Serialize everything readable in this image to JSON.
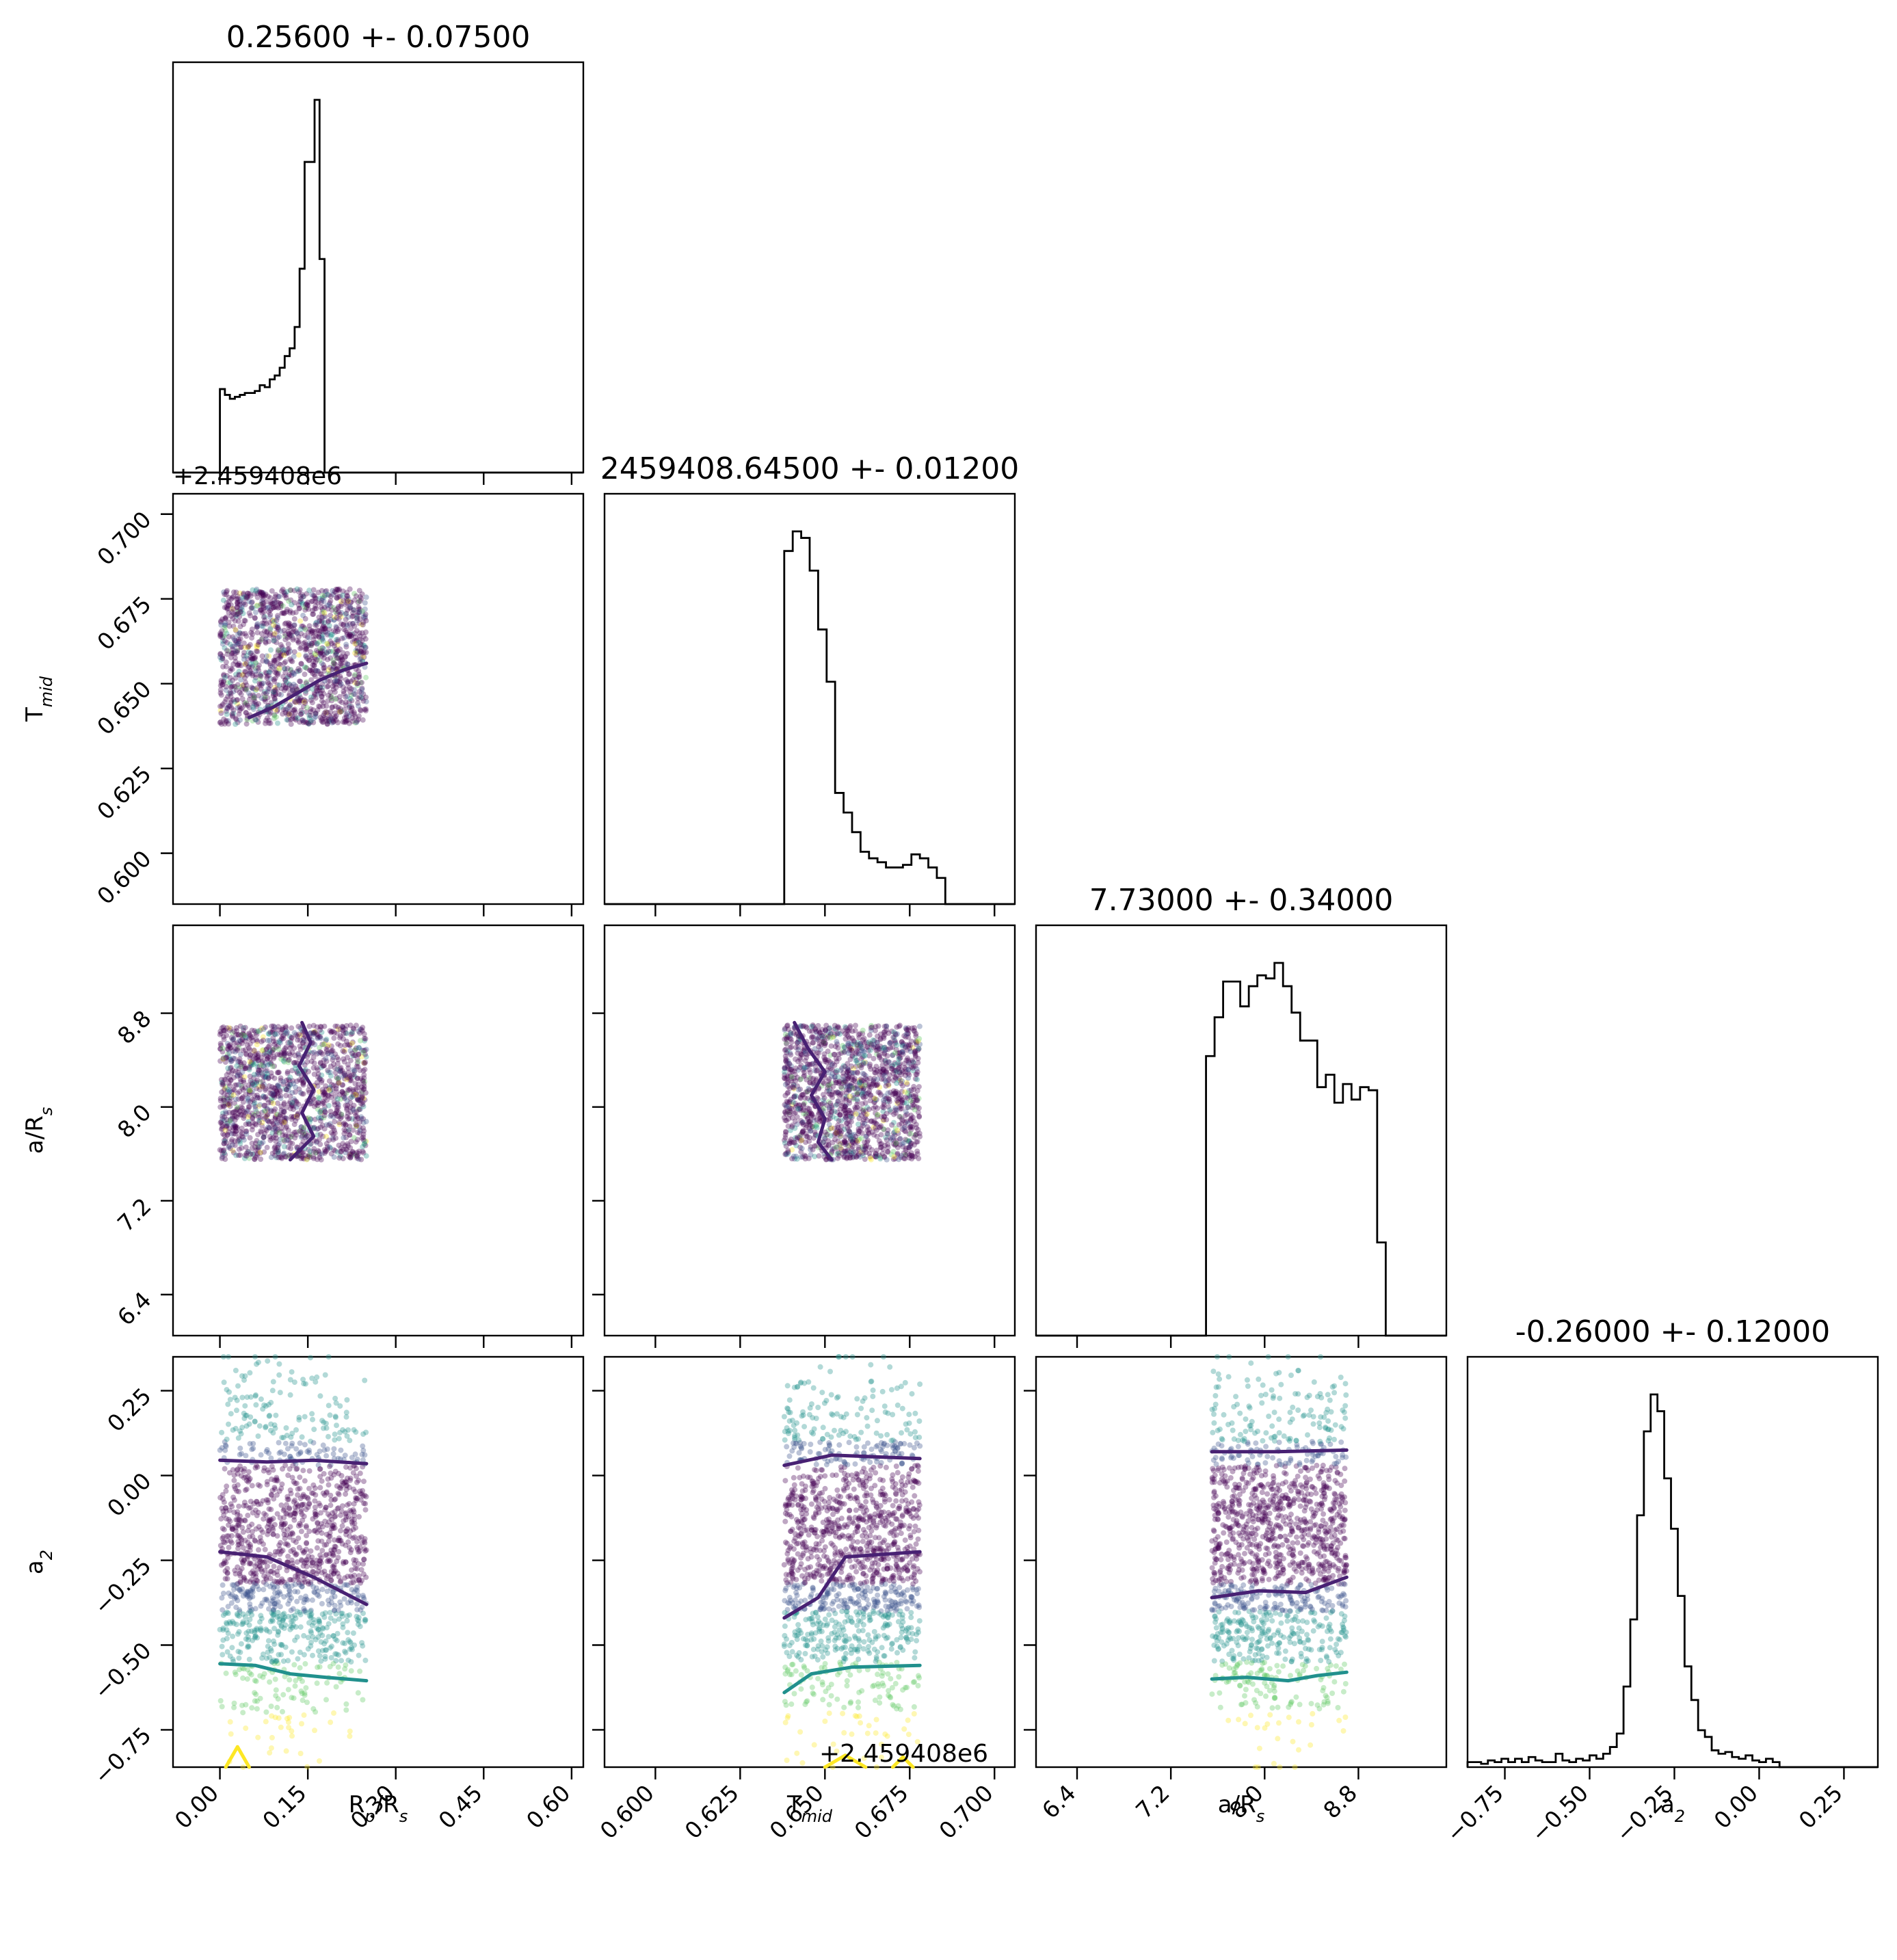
{
  "figure": {
    "kind": "corner plot"
  },
  "colors": {
    "viridis": [
      "#440154",
      "#3b528b",
      "#21918c",
      "#5ec962",
      "#fde725"
    ],
    "contour_dark": "#482173",
    "contour_mid": "#21908d",
    "contour_light": "#fde725"
  },
  "chart_data": {
    "type": "corner",
    "parameters": [
      {
        "key": "rp",
        "label": "R_p/R_s",
        "label_main": "R",
        "label_sub": "p",
        "label_rest": "/R",
        "label_sub2": "s",
        "title": "0.25600 +- 0.07500",
        "range": [
          -0.08,
          0.62
        ],
        "ticks": [
          0.0,
          0.15,
          0.3,
          0.45,
          0.6
        ],
        "tick_labels": [
          "0.00",
          "0.15",
          "0.30",
          "0.45",
          "0.60"
        ]
      },
      {
        "key": "tmid",
        "label": "T_mid",
        "label_main": "T",
        "label_sub": "mid",
        "title": "2459408.64500 +- 0.01200",
        "range": [
          0.585,
          0.706
        ],
        "offset": "+2.459408e6",
        "ticks": [
          0.6,
          0.625,
          0.65,
          0.675,
          0.7
        ],
        "tick_labels": [
          "0.600",
          "0.625",
          "0.650",
          "0.675",
          "0.700"
        ]
      },
      {
        "key": "ars",
        "label": "a/R_s",
        "label_main": "a/R",
        "label_sub": "s",
        "title": "7.73000 +- 0.34000",
        "range": [
          6.05,
          9.55
        ],
        "ticks": [
          6.4,
          7.2,
          8.0,
          8.8
        ],
        "tick_labels": [
          "6.4",
          "7.2",
          "8.0",
          "8.8"
        ]
      },
      {
        "key": "a2",
        "label": "a_2",
        "label_main": "a",
        "label_sub": "2",
        "title": "-0.26000 +- 0.12000",
        "range": [
          -0.86,
          0.35
        ],
        "ticks": [
          -0.75,
          -0.5,
          -0.25,
          0.0,
          0.25
        ],
        "tick_labels": [
          "−0.75",
          "−0.50",
          "−0.25",
          "0.00",
          "0.25"
        ]
      }
    ],
    "histograms": [
      {
        "param": "rp",
        "bin_width": 0.0085,
        "start": 0.0,
        "counts": [
          43,
          40,
          38,
          39,
          40,
          41,
          41,
          42,
          45,
          44,
          48,
          50,
          54,
          60,
          64,
          75,
          105,
          160,
          160,
          192,
          110,
          0
        ]
      },
      {
        "param": "tmid",
        "bin_width": 0.0025,
        "start": 0.638,
        "counts": [
          270,
          285,
          280,
          255,
          210,
          170,
          85,
          70,
          55,
          40,
          35,
          32,
          28,
          28,
          30,
          38,
          35,
          28,
          20,
          0
        ]
      },
      {
        "param": "ars",
        "bin_width": 0.073,
        "start": 7.5,
        "counts": [
          180,
          205,
          228,
          228,
          212,
          225,
          232,
          230,
          240,
          225,
          208,
          190,
          190,
          160,
          168,
          150,
          162,
          152,
          160,
          158,
          60,
          0
        ]
      },
      {
        "param": "a2",
        "bin_width": 0.02,
        "start": -0.86,
        "counts": [
          3,
          3,
          2,
          4,
          3,
          5,
          3,
          5,
          3,
          6,
          4,
          3,
          3,
          8,
          4,
          3,
          5,
          4,
          7,
          5,
          8,
          12,
          20,
          48,
          88,
          150,
          200,
          222,
          212,
          172,
          142,
          102,
          60,
          40,
          22,
          18,
          10,
          8,
          9,
          6,
          5,
          7,
          4,
          3,
          5,
          3
        ]
      }
    ],
    "scatter": [
      {
        "x": "rp",
        "y": "tmid",
        "x_range": [
          0.0,
          0.25
        ],
        "y_range": [
          0.638,
          0.678
        ]
      },
      {
        "x": "rp",
        "y": "ars",
        "x_range": [
          0.0,
          0.25
        ],
        "y_range": [
          7.55,
          8.7
        ]
      },
      {
        "x": "tmid",
        "y": "ars",
        "x_range": [
          0.638,
          0.678
        ],
        "y_range": [
          7.55,
          8.7
        ]
      },
      {
        "x": "rp",
        "y": "a2",
        "x_range": [
          0.0,
          0.25
        ],
        "y_range": [
          -0.86,
          0.35
        ]
      },
      {
        "x": "tmid",
        "y": "a2",
        "x_range": [
          0.638,
          0.678
        ],
        "y_range": [
          -0.86,
          0.35
        ]
      },
      {
        "x": "ars",
        "y": "a2",
        "x_range": [
          7.55,
          8.7
        ],
        "y_range": [
          -0.86,
          0.35
        ]
      }
    ],
    "contours": [
      {
        "x": "rp",
        "y": "tmid",
        "color": "dark",
        "lines": [
          [
            [
              0.05,
              0.64
            ],
            [
              0.09,
              0.643
            ],
            [
              0.13,
              0.647
            ],
            [
              0.17,
              0.651
            ],
            [
              0.21,
              0.654
            ],
            [
              0.25,
              0.656
            ]
          ]
        ]
      },
      {
        "x": "rp",
        "y": "ars",
        "color": "dark",
        "lines": [
          [
            [
              0.14,
              8.72
            ],
            [
              0.155,
              8.55
            ],
            [
              0.135,
              8.35
            ],
            [
              0.16,
              8.15
            ],
            [
              0.14,
              7.95
            ],
            [
              0.16,
              7.75
            ],
            [
              0.12,
              7.55
            ]
          ]
        ]
      },
      {
        "x": "tmid",
        "y": "ars",
        "color": "dark",
        "lines": [
          [
            [
              0.641,
              8.72
            ],
            [
              0.645,
              8.5
            ],
            [
              0.65,
              8.3
            ],
            [
              0.646,
              8.1
            ],
            [
              0.65,
              7.9
            ],
            [
              0.648,
              7.7
            ],
            [
              0.652,
              7.55
            ]
          ]
        ]
      },
      {
        "x": "rp",
        "y": "a2",
        "color": "dark",
        "lines": [
          [
            [
              0.0,
              0.045
            ],
            [
              0.08,
              0.04
            ],
            [
              0.16,
              0.045
            ],
            [
              0.25,
              0.035
            ]
          ],
          [
            [
              0.0,
              -0.225
            ],
            [
              0.08,
              -0.24
            ],
            [
              0.16,
              -0.3
            ],
            [
              0.25,
              -0.38
            ]
          ]
        ]
      },
      {
        "x": "rp",
        "y": "a2",
        "color": "mid",
        "lines": [
          [
            [
              0.0,
              -0.555
            ],
            [
              0.06,
              -0.56
            ],
            [
              0.12,
              -0.585
            ],
            [
              0.18,
              -0.595
            ],
            [
              0.25,
              -0.605
            ]
          ]
        ]
      },
      {
        "x": "rp",
        "y": "a2",
        "color": "light",
        "lines": [
          [
            [
              0.01,
              -0.86
            ],
            [
              0.03,
              -0.8
            ],
            [
              0.05,
              -0.86
            ]
          ]
        ]
      },
      {
        "x": "tmid",
        "y": "a2",
        "color": "dark",
        "lines": [
          [
            [
              0.638,
              0.03
            ],
            [
              0.652,
              0.06
            ],
            [
              0.678,
              0.05
            ]
          ],
          [
            [
              0.638,
              -0.42
            ],
            [
              0.648,
              -0.36
            ],
            [
              0.656,
              -0.24
            ],
            [
              0.678,
              -0.225
            ]
          ]
        ]
      },
      {
        "x": "tmid",
        "y": "a2",
        "color": "mid",
        "lines": [
          [
            [
              0.638,
              -0.64
            ],
            [
              0.646,
              -0.585
            ],
            [
              0.658,
              -0.565
            ],
            [
              0.678,
              -0.56
            ]
          ]
        ]
      },
      {
        "x": "tmid",
        "y": "a2",
        "color": "light",
        "lines": [
          [
            [
              0.65,
              -0.86
            ],
            [
              0.656,
              -0.825
            ],
            [
              0.662,
              -0.86
            ]
          ],
          [
            [
              0.67,
              -0.86
            ],
            [
              0.673,
              -0.83
            ],
            [
              0.676,
              -0.86
            ]
          ]
        ]
      },
      {
        "x": "ars",
        "y": "a2",
        "color": "dark",
        "lines": [
          [
            [
              7.55,
              0.07
            ],
            [
              8.1,
              0.07
            ],
            [
              8.7,
              0.075
            ]
          ],
          [
            [
              7.55,
              -0.36
            ],
            [
              7.95,
              -0.34
            ],
            [
              8.35,
              -0.345
            ],
            [
              8.7,
              -0.3
            ]
          ]
        ]
      },
      {
        "x": "ars",
        "y": "a2",
        "color": "mid",
        "lines": [
          [
            [
              7.55,
              -0.6
            ],
            [
              7.85,
              -0.595
            ],
            [
              8.2,
              -0.605
            ],
            [
              8.45,
              -0.59
            ],
            [
              8.7,
              -0.58
            ]
          ]
        ]
      }
    ]
  }
}
